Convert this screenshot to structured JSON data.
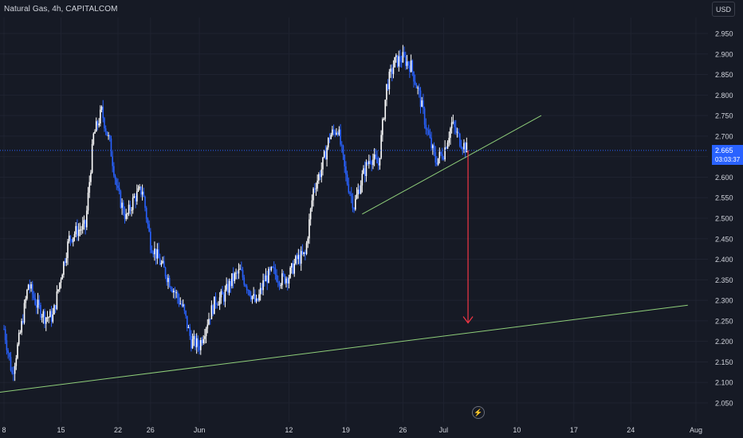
{
  "header": {
    "symbol_title": "Natural Gas, 4h, CAPITALCOM"
  },
  "currency_selector": {
    "label": "USD"
  },
  "last_price": {
    "value": "2.665",
    "countdown": "03:03:37"
  },
  "flash_icon": "lightning-icon",
  "colors": {
    "background": "#161a25",
    "up": "#ffffff",
    "down": "#2962ff",
    "trendline": "#8fcf7a",
    "arrow": "#f23645",
    "price_line": "#2962ff"
  },
  "chart_data": {
    "type": "candlestick",
    "title": "Natural Gas, 4h, CAPITALCOM",
    "y_axis": {
      "min": 2.05,
      "max": 2.95,
      "step": 0.05,
      "position": "right",
      "ticks": [
        "2.950",
        "2.900",
        "2.850",
        "2.800",
        "2.750",
        "2.700",
        "2.650",
        "2.600",
        "2.550",
        "2.500",
        "2.450",
        "2.400",
        "2.350",
        "2.300",
        "2.250",
        "2.200",
        "2.150",
        "2.100",
        "2.050"
      ]
    },
    "x_axis": {
      "range": [
        "2023-05-08",
        "2023-08-01"
      ],
      "ticks": [
        {
          "label": "8",
          "date": "2023-05-08"
        },
        {
          "label": "15",
          "date": "2023-05-15"
        },
        {
          "label": "22",
          "date": "2023-05-22"
        },
        {
          "label": "26",
          "date": "2023-05-26"
        },
        {
          "label": "Jun",
          "date": "2023-06-01"
        },
        {
          "label": "12",
          "date": "2023-06-12"
        },
        {
          "label": "19",
          "date": "2023-06-19"
        },
        {
          "label": "26",
          "date": "2023-06-26"
        },
        {
          "label": "Jul",
          "date": "2023-07-01"
        },
        {
          "label": "10",
          "date": "2023-07-10"
        },
        {
          "label": "17",
          "date": "2023-07-17"
        },
        {
          "label": "24",
          "date": "2023-07-24"
        },
        {
          "label": "Aug",
          "date": "2023-08-01"
        }
      ]
    },
    "close_path": [
      [
        "2023-05-08",
        2.23
      ],
      [
        "2023-05-09",
        2.12
      ],
      [
        "2023-05-10",
        2.22
      ],
      [
        "2023-05-11",
        2.34
      ],
      [
        "2023-05-12",
        2.29
      ],
      [
        "2023-05-13",
        2.26
      ],
      [
        "2023-05-14",
        2.26
      ],
      [
        "2023-05-15",
        2.36
      ],
      [
        "2023-05-16",
        2.45
      ],
      [
        "2023-05-17",
        2.47
      ],
      [
        "2023-05-18",
        2.48
      ],
      [
        "2023-05-19",
        2.7
      ],
      [
        "2023-05-20",
        2.76
      ],
      [
        "2023-05-21",
        2.68
      ],
      [
        "2023-05-22",
        2.56
      ],
      [
        "2023-05-23",
        2.5
      ],
      [
        "2023-05-24",
        2.55
      ],
      [
        "2023-05-25",
        2.57
      ],
      [
        "2023-05-26",
        2.44
      ],
      [
        "2023-05-27",
        2.4
      ],
      [
        "2023-05-28",
        2.36
      ],
      [
        "2023-05-29",
        2.32
      ],
      [
        "2023-05-30",
        2.28
      ],
      [
        "2023-05-31",
        2.2
      ],
      [
        "2023-06-01",
        2.19
      ],
      [
        "2023-06-02",
        2.25
      ],
      [
        "2023-06-03",
        2.3
      ],
      [
        "2023-06-04",
        2.31
      ],
      [
        "2023-06-05",
        2.35
      ],
      [
        "2023-06-06",
        2.37
      ],
      [
        "2023-06-07",
        2.33
      ],
      [
        "2023-06-08",
        2.29
      ],
      [
        "2023-06-09",
        2.35
      ],
      [
        "2023-06-10",
        2.37
      ],
      [
        "2023-06-11",
        2.35
      ],
      [
        "2023-06-12",
        2.36
      ],
      [
        "2023-06-13",
        2.4
      ],
      [
        "2023-06-14",
        2.41
      ],
      [
        "2023-06-15",
        2.57
      ],
      [
        "2023-06-16",
        2.62
      ],
      [
        "2023-06-17",
        2.7
      ],
      [
        "2023-06-18",
        2.72
      ],
      [
        "2023-06-19",
        2.6
      ],
      [
        "2023-06-20",
        2.53
      ],
      [
        "2023-06-21",
        2.6
      ],
      [
        "2023-06-22",
        2.65
      ],
      [
        "2023-06-23",
        2.63
      ],
      [
        "2023-06-24",
        2.82
      ],
      [
        "2023-06-25",
        2.88
      ],
      [
        "2023-06-26",
        2.89
      ],
      [
        "2023-06-27",
        2.87
      ],
      [
        "2023-06-28",
        2.8
      ],
      [
        "2023-06-29",
        2.71
      ],
      [
        "2023-06-30",
        2.64
      ],
      [
        "2023-07-01",
        2.66
      ],
      [
        "2023-07-02",
        2.73
      ],
      [
        "2023-07-03",
        2.69
      ],
      [
        "2023-07-04",
        2.665
      ]
    ],
    "last_price": 2.665,
    "annotations": [
      {
        "type": "trendline",
        "color": "#8fcf7a",
        "from": [
          "2023-05-07",
          2.075
        ],
        "to": [
          "2023-07-31",
          2.288
        ]
      },
      {
        "type": "trendline",
        "color": "#8fcf7a",
        "from": [
          "2023-06-21",
          2.51
        ],
        "to": [
          "2023-07-13",
          2.75
        ]
      },
      {
        "type": "arrow",
        "color": "#f23645",
        "from": [
          "2023-07-04",
          2.665
        ],
        "to": [
          "2023-07-04",
          2.245
        ]
      }
    ]
  }
}
